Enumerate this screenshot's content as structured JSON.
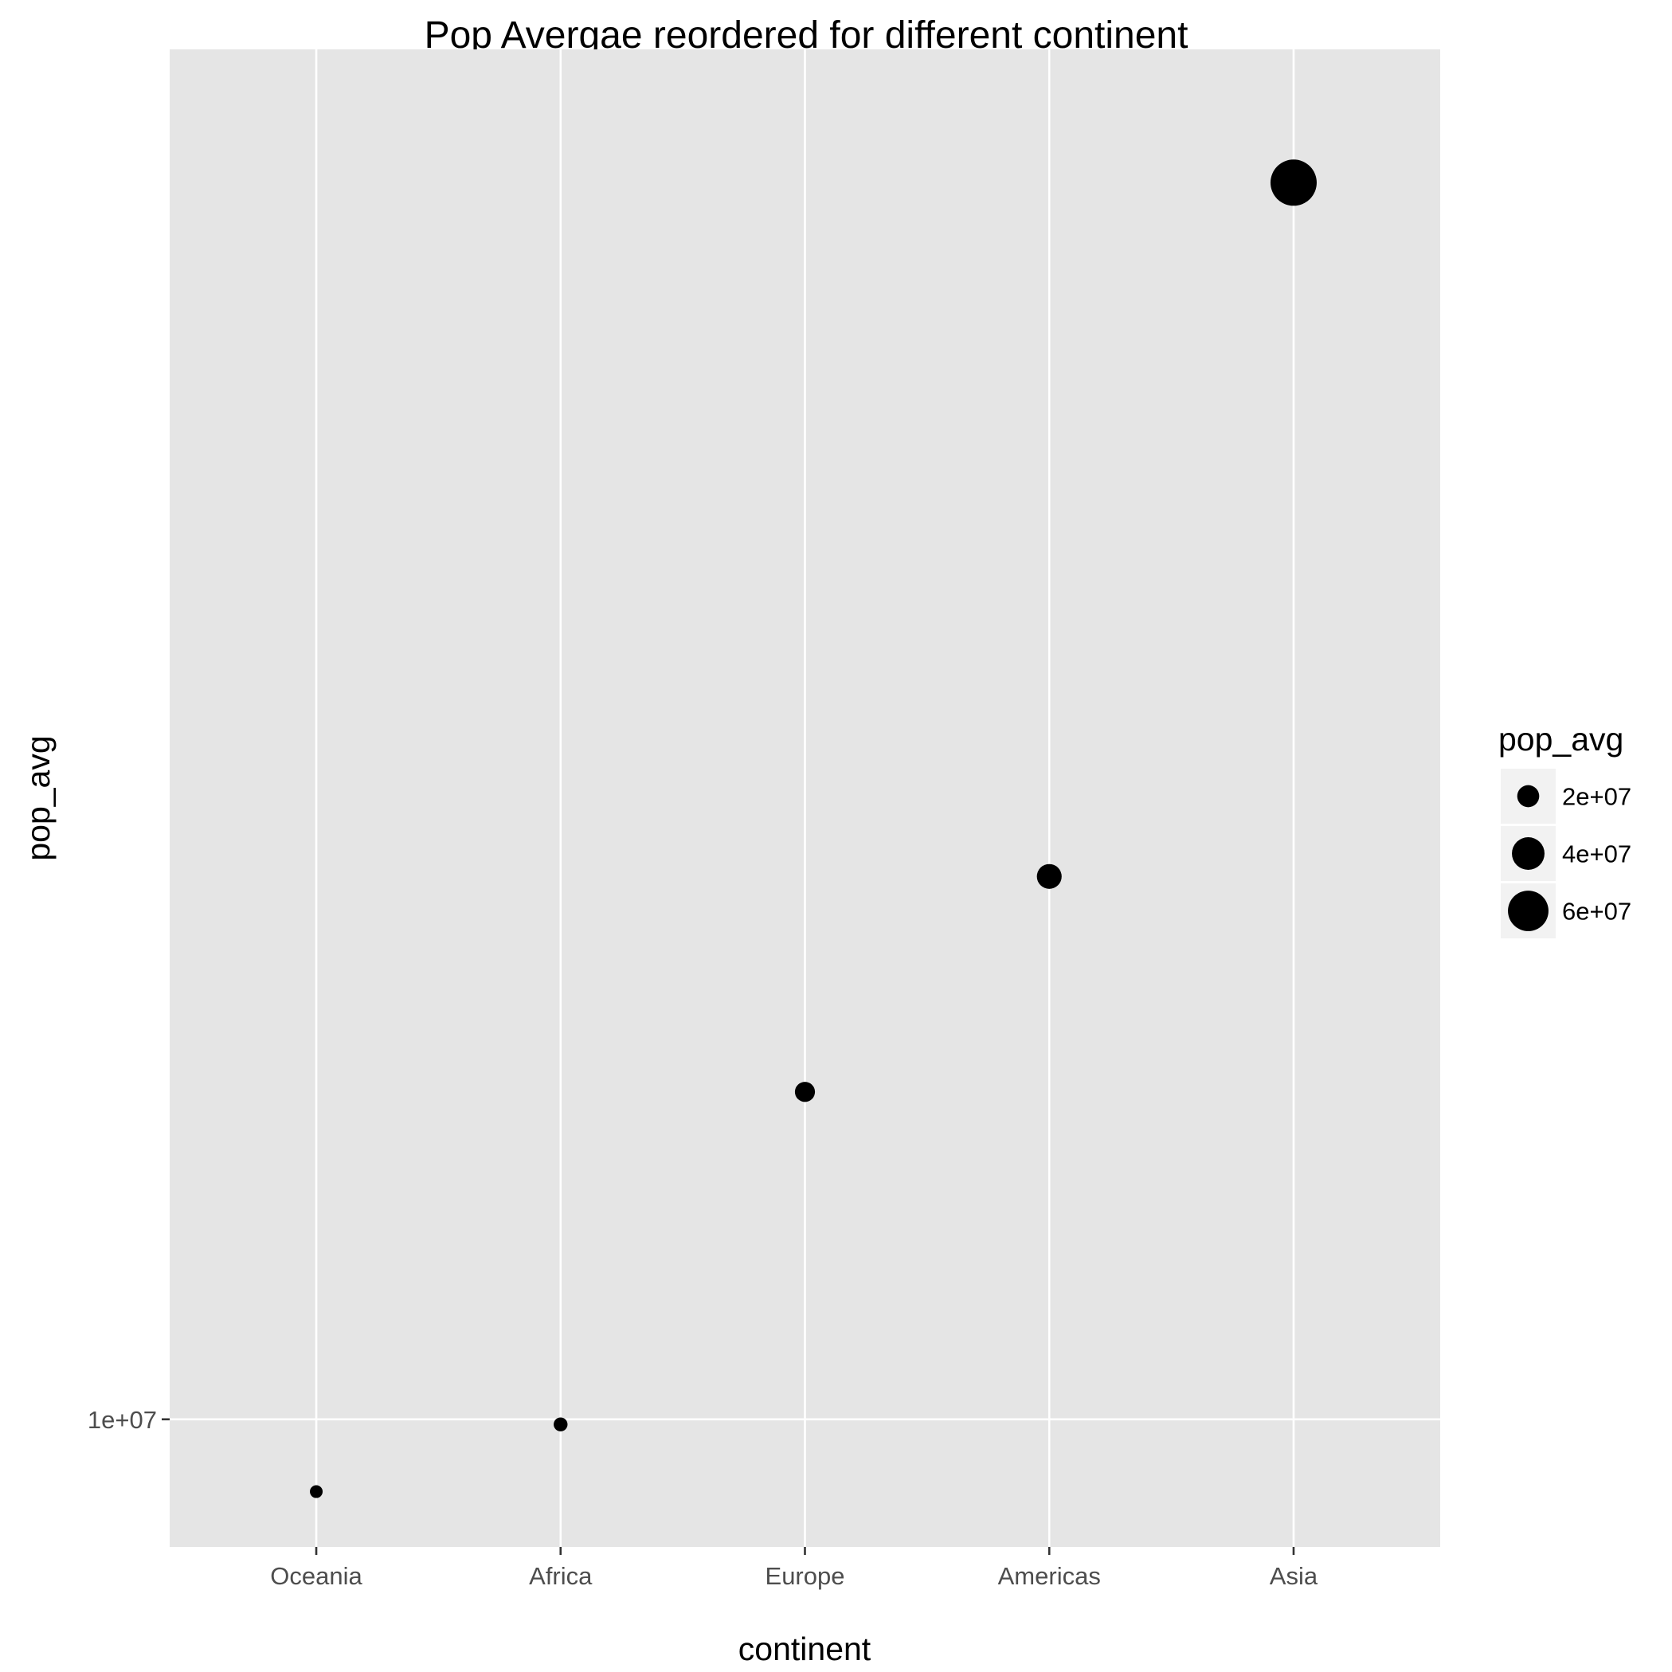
{
  "chart_data": {
    "type": "scatter",
    "title": "Pop Avergae reordered for different continent",
    "xlabel": "continent",
    "ylabel": "pop_avg",
    "categories": [
      "Oceania",
      "Africa",
      "Europe",
      "Americas",
      "Asia"
    ],
    "series": [
      {
        "values": [
          8874672,
          9916003,
          17169765,
          24504795,
          77038722
        ]
      }
    ],
    "y_scale": "log10",
    "ylim": [
      8100000,
      96000000
    ],
    "y_ticks": [
      10000000
    ],
    "y_tick_labels": [
      "1e+07"
    ],
    "size_variable": "pop_avg",
    "grid": true,
    "legend": {
      "title": "pop_avg",
      "position": "right",
      "entries": [
        {
          "label": "2e+07",
          "value": 20000000
        },
        {
          "label": "4e+07",
          "value": 40000000
        },
        {
          "label": "6e+07",
          "value": 60000000
        }
      ]
    },
    "colors": {
      "panel_background": "#e5e5e5",
      "grid": "#ffffff",
      "point": "#000000",
      "tick_text": "#4d4d4d",
      "legend_key_background": "#f2f2f2"
    }
  }
}
